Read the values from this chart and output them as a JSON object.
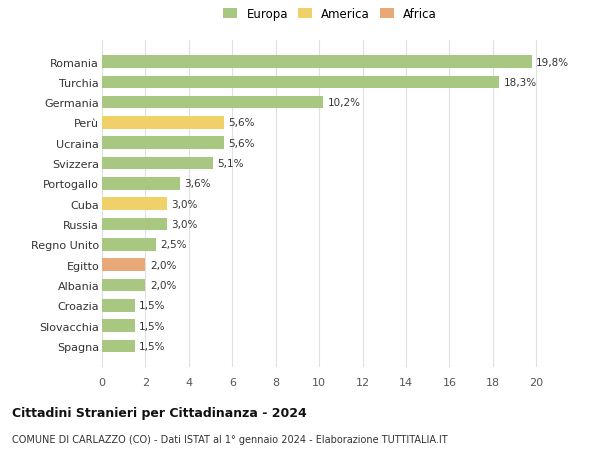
{
  "categories": [
    "Romania",
    "Turchia",
    "Germania",
    "Perù",
    "Ucraina",
    "Svizzera",
    "Portogallo",
    "Cuba",
    "Russia",
    "Regno Unito",
    "Egitto",
    "Albania",
    "Croazia",
    "Slovacchia",
    "Spagna"
  ],
  "values": [
    19.8,
    18.3,
    10.2,
    5.6,
    5.6,
    5.1,
    3.6,
    3.0,
    3.0,
    2.5,
    2.0,
    2.0,
    1.5,
    1.5,
    1.5
  ],
  "labels": [
    "19,8%",
    "18,3%",
    "10,2%",
    "5,6%",
    "5,6%",
    "5,1%",
    "3,6%",
    "3,0%",
    "3,0%",
    "2,5%",
    "2,0%",
    "2,0%",
    "1,5%",
    "1,5%",
    "1,5%"
  ],
  "continent": [
    "Europa",
    "Europa",
    "Europa",
    "America",
    "Europa",
    "Europa",
    "Europa",
    "America",
    "Europa",
    "Europa",
    "Africa",
    "Europa",
    "Europa",
    "Europa",
    "Europa"
  ],
  "colors": {
    "Europa": "#a8c882",
    "America": "#f0d068",
    "Africa": "#e8a878"
  },
  "legend": [
    {
      "label": "Europa",
      "color": "#a8c882"
    },
    {
      "label": "America",
      "color": "#f0d068"
    },
    {
      "label": "Africa",
      "color": "#e8a878"
    }
  ],
  "xlim": [
    0,
    21
  ],
  "xticks": [
    0,
    2,
    4,
    6,
    8,
    10,
    12,
    14,
    16,
    18,
    20
  ],
  "title": "Cittadini Stranieri per Cittadinanza - 2024",
  "subtitle": "COMUNE DI CARLAZZO (CO) - Dati ISTAT al 1° gennaio 2024 - Elaborazione TUTTITALIA.IT",
  "background_color": "#ffffff",
  "grid_color": "#e0e0e0"
}
